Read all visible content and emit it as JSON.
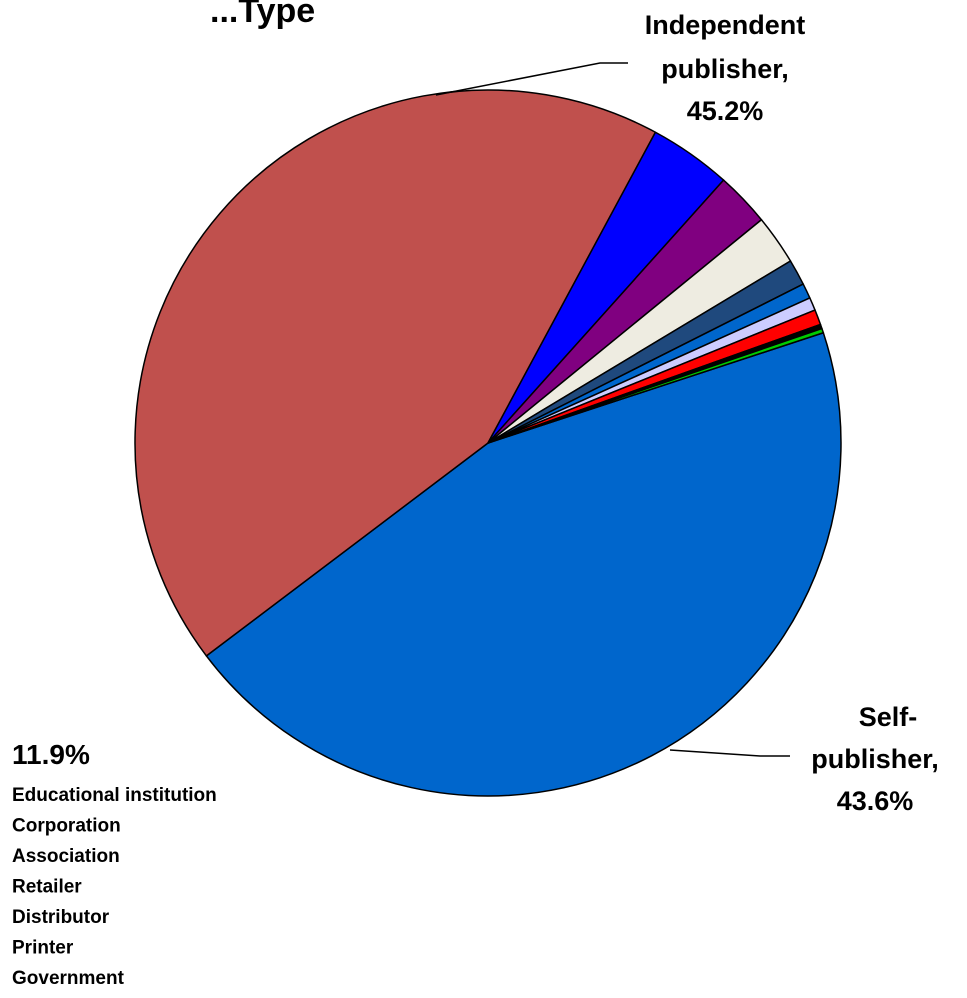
{
  "chart_data": {
    "type": "pie",
    "title": "...Type",
    "slices": [
      {
        "label": "Independent publisher",
        "value": 45.2,
        "color": "#0066CC"
      },
      {
        "label": "Self-publisher",
        "value": 43.6,
        "color": "#C0504D"
      },
      {
        "label": "Educational institution",
        "value": 3.8,
        "color": "#0000FF"
      },
      {
        "label": "Corporation",
        "value": 2.5,
        "color": "#800080"
      },
      {
        "label": "Association",
        "value": 2.3,
        "color": "#EEECE1"
      },
      {
        "label": "Retailer",
        "value": 1.2,
        "color": "#1F497D"
      },
      {
        "label": "Distributor",
        "value": 0.7,
        "color": "#0066CC"
      },
      {
        "label": "Printer",
        "value": 0.6,
        "color": "#CCCCFF"
      },
      {
        "label": "Government",
        "value": 0.7,
        "color": "#FF0000"
      },
      {
        "label": "",
        "value": 0.2,
        "color": "#000000"
      },
      {
        "label": "",
        "value": 0.2,
        "color": "#00CC00"
      }
    ],
    "callouts": {
      "independent": {
        "lines": [
          "Independent",
          "publisher,",
          "45.2%"
        ]
      },
      "self": {
        "lines": [
          "Self-",
          "publisher,",
          "43.6%"
        ]
      },
      "other": {
        "value": "11.9%",
        "items": [
          "Educational institution",
          "Corporation",
          "Association",
          "Retailer",
          "Distributor",
          "Printer",
          "Government"
        ]
      }
    },
    "legend": "none",
    "grid": false
  }
}
